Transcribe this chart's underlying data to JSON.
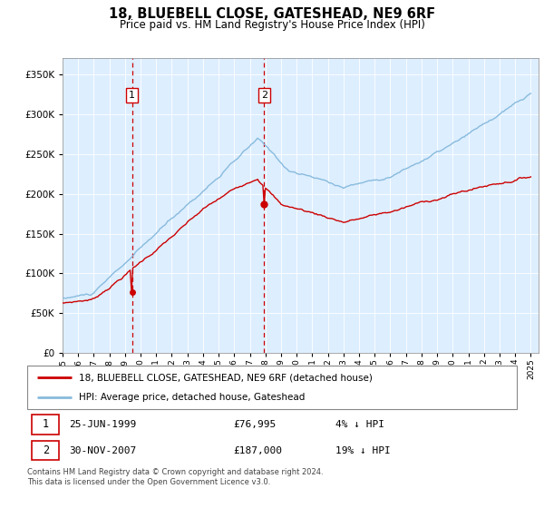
{
  "title": "18, BLUEBELL CLOSE, GATESHEAD, NE9 6RF",
  "subtitle": "Price paid vs. HM Land Registry's House Price Index (HPI)",
  "ylim": [
    0,
    370000
  ],
  "yticks": [
    0,
    50000,
    100000,
    150000,
    200000,
    250000,
    300000,
    350000
  ],
  "sale1_x": 1999.458,
  "sale1_price": 76995,
  "sale2_x": 2007.917,
  "sale2_price": 187000,
  "legend_sale_label": "18, BLUEBELL CLOSE, GATESHEAD, NE9 6RF (detached house)",
  "legend_hpi_label": "HPI: Average price, detached house, Gateshead",
  "footer": "Contains HM Land Registry data © Crown copyright and database right 2024.\nThis data is licensed under the Open Government Licence v3.0.",
  "sale_line_color": "#cc0000",
  "hpi_line_color": "#88bbdd",
  "vline_color": "#cc0000",
  "background_color": "#ddeeff",
  "plot_bg": "#ffffff"
}
